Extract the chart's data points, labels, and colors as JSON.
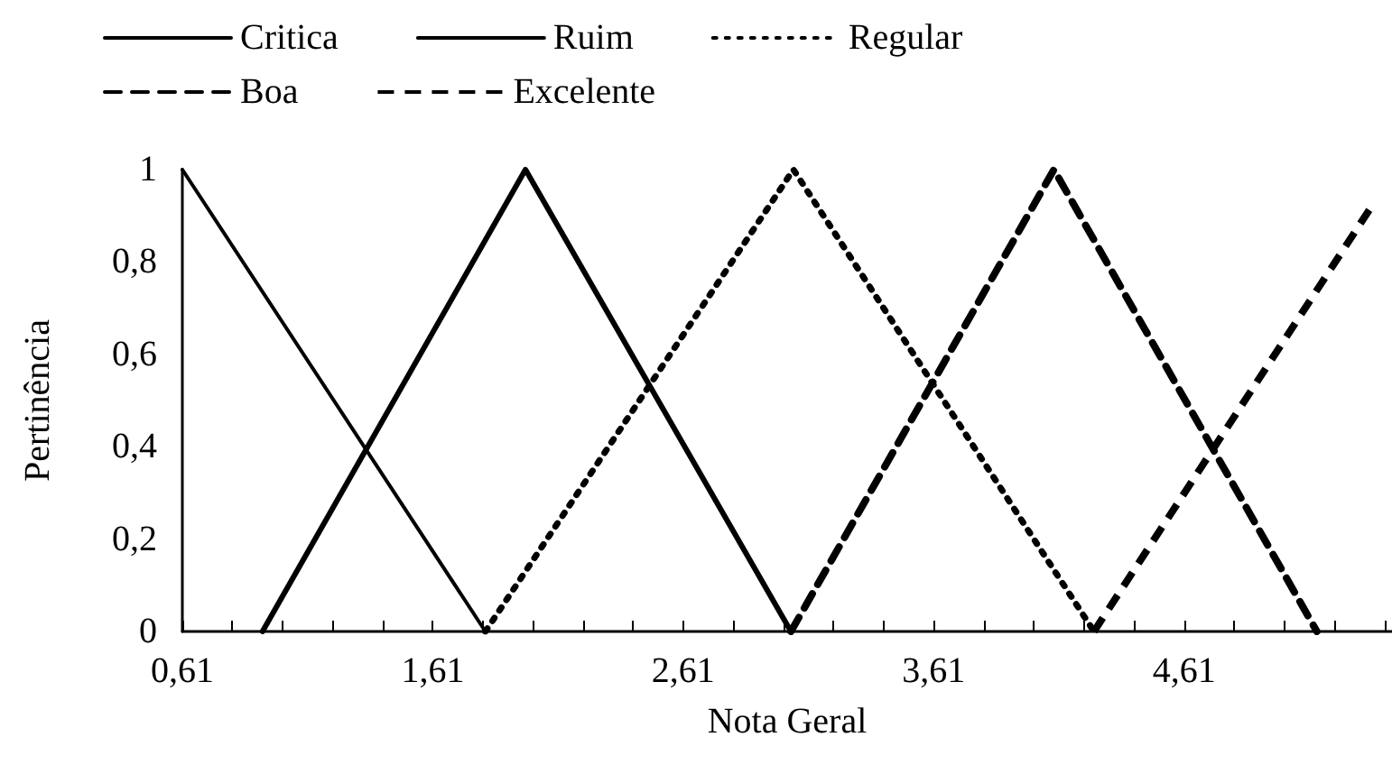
{
  "chart_data": {
    "type": "line",
    "xlabel": "Nota Geral",
    "ylabel": "Pertinência",
    "xlim": [
      0.61,
      5.44
    ],
    "xticks": [
      {
        "value": 0.61,
        "label": "0,61"
      },
      {
        "value": 0.81,
        "label": null
      },
      {
        "value": 1.01,
        "label": null
      },
      {
        "value": 1.21,
        "label": null
      },
      {
        "value": 1.41,
        "label": null
      },
      {
        "value": 1.61,
        "label": "1,61"
      },
      {
        "value": 1.81,
        "label": null
      },
      {
        "value": 2.01,
        "label": null
      },
      {
        "value": 2.21,
        "label": null
      },
      {
        "value": 2.41,
        "label": null
      },
      {
        "value": 2.61,
        "label": "2,61"
      },
      {
        "value": 2.81,
        "label": null
      },
      {
        "value": 3.01,
        "label": null
      },
      {
        "value": 3.21,
        "label": null
      },
      {
        "value": 3.41,
        "label": null
      },
      {
        "value": 3.61,
        "label": "3,61"
      },
      {
        "value": 3.81,
        "label": null
      },
      {
        "value": 4.01,
        "label": null
      },
      {
        "value": 4.21,
        "label": null
      },
      {
        "value": 4.41,
        "label": null
      },
      {
        "value": 4.61,
        "label": "4,61"
      },
      {
        "value": 4.81,
        "label": null
      },
      {
        "value": 5.01,
        "label": null
      },
      {
        "value": 5.21,
        "label": null
      },
      {
        "value": 5.41,
        "label": null
      }
    ],
    "ylim": [
      0,
      1
    ],
    "yticks": [
      0,
      {
        "value": 0.2,
        "label": "0,2"
      },
      {
        "value": 0.4,
        "label": "0,4"
      },
      {
        "value": 0.6,
        "label": "0,6"
      },
      {
        "value": 0.8,
        "label": "0,8"
      },
      1
    ],
    "grid": false,
    "legend": "top",
    "marker": "none",
    "series": [
      {
        "name": "Critica",
        "color": "#000000",
        "line_style": "solid",
        "x": [
          0.61,
          1.82
        ],
        "values": [
          1,
          0
        ]
      },
      {
        "name": "Ruim",
        "color": "#000000",
        "line_style": "solid",
        "x": [
          0.93,
          1.98,
          3.04
        ],
        "values": [
          0,
          1,
          0
        ]
      },
      {
        "name": "Regular",
        "color": "#000000",
        "line_style": "dotted",
        "x": [
          1.82,
          3.05,
          4.25
        ],
        "values": [
          0,
          1,
          0
        ]
      },
      {
        "name": "Boa",
        "color": "#000000",
        "line_style": "dashed",
        "x": [
          3.04,
          4.09,
          5.14
        ],
        "values": [
          0,
          1,
          0
        ]
      },
      {
        "name": "Excelente",
        "color": "#000000",
        "line_style": "dashed",
        "x": [
          4.25,
          5.37
        ],
        "values": [
          0,
          0.93
        ]
      }
    ]
  }
}
